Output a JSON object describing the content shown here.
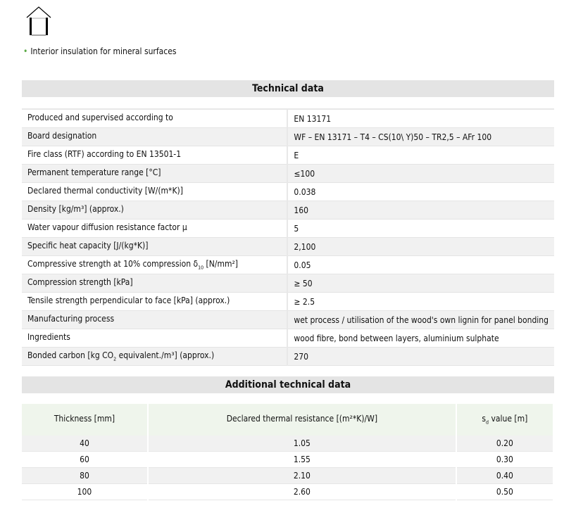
{
  "intro": {
    "bullet": "Interior insulation for mineral surfaces",
    "icon": "house-icon",
    "bullet_color": "#5aaa46"
  },
  "technical": {
    "title": "Technical data",
    "rows": [
      {
        "pre": "Produced and supervised according to",
        "sub": "",
        "post": "",
        "value": "EN 13171"
      },
      {
        "pre": "Board designation",
        "sub": "",
        "post": "",
        "value": "WF – EN 13171 – T4 – CS(10\\ Y)50 – TR2,5 – AFr 100"
      },
      {
        "pre": "Fire class (RTF) according to EN 13501-1",
        "sub": "",
        "post": "",
        "value": "E"
      },
      {
        "pre": "Permanent temperature range [°C]",
        "sub": "",
        "post": "",
        "value": "≤100"
      },
      {
        "pre": "Declared thermal conductivity [W/(m*K)]",
        "sub": "",
        "post": "",
        "value": "0.038"
      },
      {
        "pre": "Density [kg/m³] (approx.)",
        "sub": "",
        "post": "",
        "value": "160"
      },
      {
        "pre": "Water vapour diffusion resistance factor μ",
        "sub": "",
        "post": "",
        "value": "5"
      },
      {
        "pre": "Specific heat capacity [J/(kg*K)]",
        "sub": "",
        "post": "",
        "value": "2,100"
      },
      {
        "pre": "Compressive strength at 10% compression δ",
        "sub": "10",
        "post": " [N/mm²]",
        "value": "0.05"
      },
      {
        "pre": "Compression strength [kPa]",
        "sub": "",
        "post": "",
        "value": "≥ 50"
      },
      {
        "pre": "Tensile strength perpendicular to face [kPa] (approx.)",
        "sub": "",
        "post": "",
        "value": "≥ 2.5"
      },
      {
        "pre": "Manufacturing process",
        "sub": "",
        "post": "",
        "value": "wet process / utilisation of the wood's own lignin for panel bonding"
      },
      {
        "pre": "Ingredients",
        "sub": "",
        "post": "",
        "value": "wood fibre, bond between layers, aluminium sulphate"
      },
      {
        "pre": "Bonded carbon [kg CO",
        "sub": "2",
        "post": " equivalent./m³] (approx.)",
        "value": "270"
      }
    ]
  },
  "additional": {
    "title": "Additional technical data",
    "headers": [
      {
        "pre": "Thickness [mm]",
        "sub": "",
        "post": ""
      },
      {
        "pre": "Declared thermal resistance [(m²*K)/W]",
        "sub": "",
        "post": ""
      },
      {
        "pre": "s",
        "sub": "d",
        "post": " value [m]"
      }
    ],
    "rows": [
      [
        "40",
        "1.05",
        "0.20"
      ],
      [
        "60",
        "1.55",
        "0.30"
      ],
      [
        "80",
        "2.10",
        "0.40"
      ],
      [
        "100",
        "2.60",
        "0.50"
      ]
    ]
  }
}
